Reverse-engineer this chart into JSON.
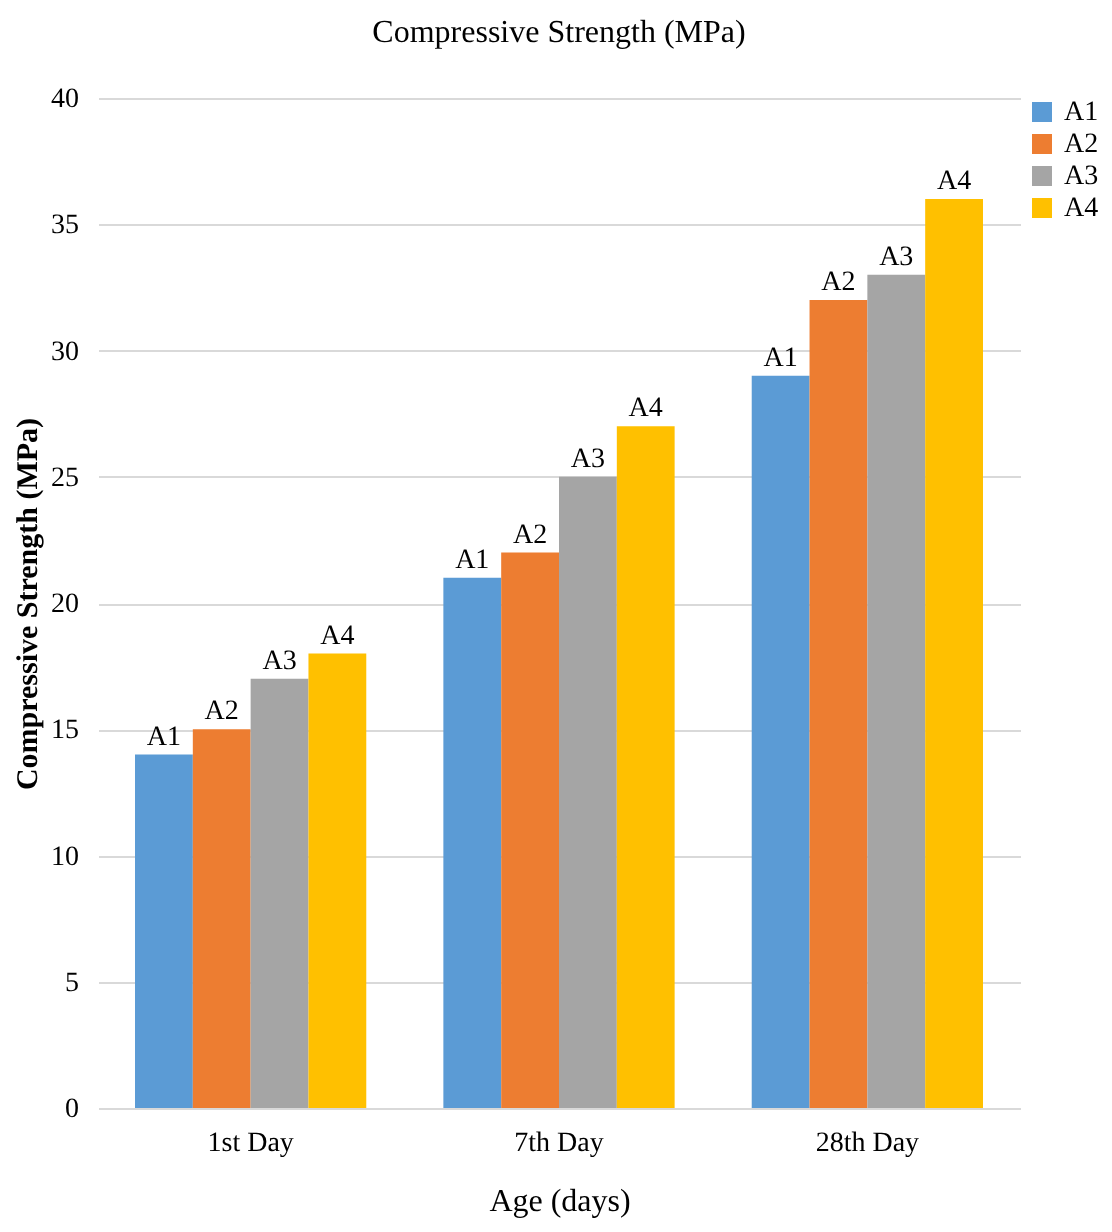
{
  "chart_data": {
    "type": "bar",
    "title": "Compressive Strength (MPa)",
    "xlabel": "Age (days)",
    "ylabel": "Compressive Strength (MPa)",
    "categories": [
      "1st Day",
      "7th Day",
      "28th Day"
    ],
    "series": [
      {
        "name": "A1",
        "color": "#5b9bd5",
        "values": [
          14,
          21,
          29
        ],
        "value_labels": [
          "A1",
          "A1",
          "A1"
        ]
      },
      {
        "name": "A2",
        "color": "#ed7d31",
        "values": [
          15,
          22,
          32
        ],
        "value_labels": [
          "A2",
          "A2",
          "A2"
        ]
      },
      {
        "name": "A3",
        "color": "#a5a5a5",
        "values": [
          17,
          25,
          33
        ],
        "value_labels": [
          "A3",
          "A3",
          "A3"
        ]
      },
      {
        "name": "A4",
        "color": "#ffc000",
        "values": [
          18,
          27,
          36
        ],
        "value_labels": [
          "A4",
          "A4",
          "A4"
        ]
      }
    ],
    "ylim": [
      0,
      40
    ],
    "yticks": [
      0,
      5,
      10,
      15,
      20,
      25,
      30,
      35,
      40
    ],
    "grid": "y",
    "legend": "right"
  }
}
